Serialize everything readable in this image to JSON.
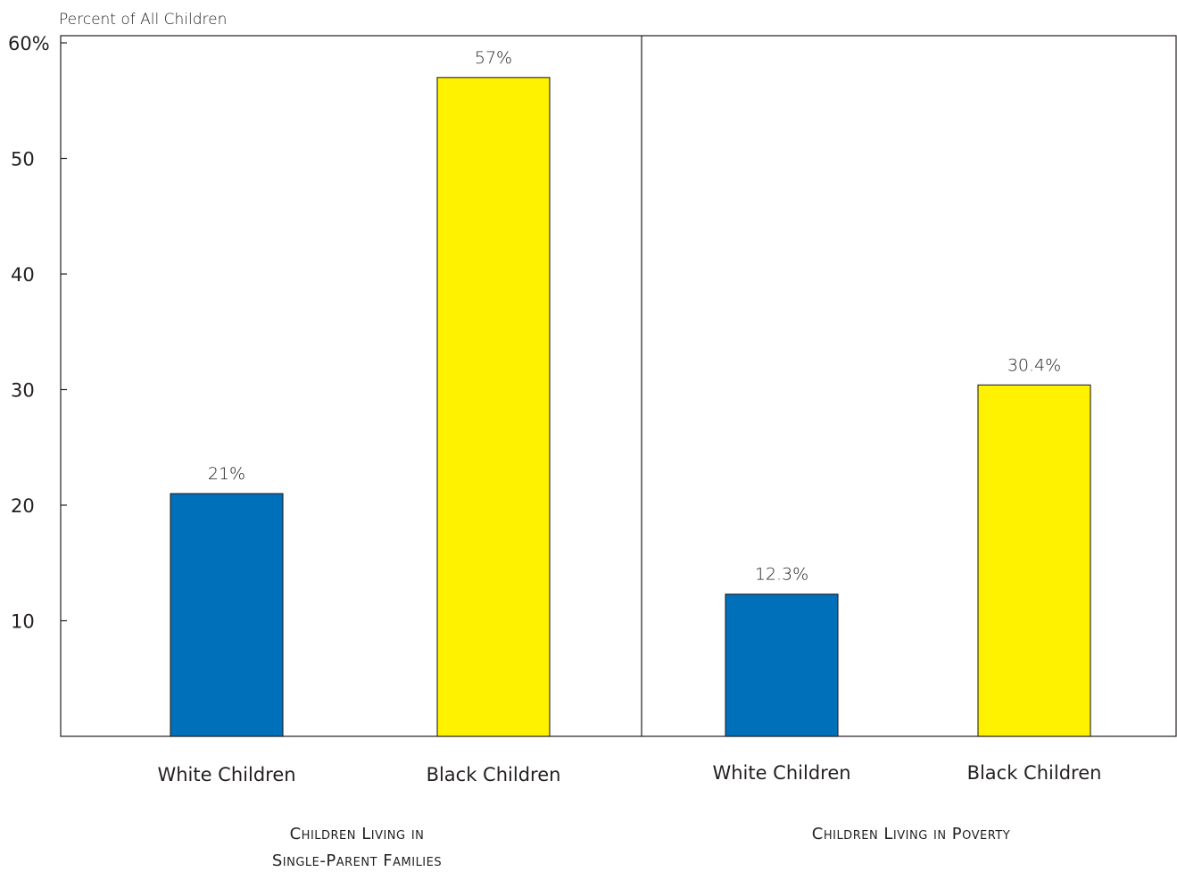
{
  "chart_data": {
    "type": "bar",
    "ylabel": "Percent of All Children",
    "ylim": [
      0,
      60
    ],
    "yticks": [
      {
        "value": 60,
        "label": "60%"
      },
      {
        "value": 50,
        "label": "50"
      },
      {
        "value": 40,
        "label": "40"
      },
      {
        "value": 30,
        "label": "30"
      },
      {
        "value": 20,
        "label": "20"
      },
      {
        "value": 10,
        "label": "10"
      }
    ],
    "colors": {
      "white_children": "#0070bb",
      "black_children": "#fff200",
      "outline": "#231f20"
    },
    "groups": [
      {
        "label_lines": [
          "Children Living in",
          "Single-Parent Families"
        ],
        "bars": [
          {
            "category": "White Children",
            "value": 21,
            "label": "21%",
            "color": "#0070bb"
          },
          {
            "category": "Black Children",
            "value": 57,
            "label": "57%",
            "color": "#fff200"
          }
        ]
      },
      {
        "label_lines": [
          "Children Living in Poverty"
        ],
        "bars": [
          {
            "category": "White Children",
            "value": 12.3,
            "label": "12.3%",
            "color": "#0070bb"
          },
          {
            "category": "Black Children",
            "value": 30.4,
            "label": "30.4%",
            "color": "#fff200"
          }
        ]
      }
    ]
  }
}
